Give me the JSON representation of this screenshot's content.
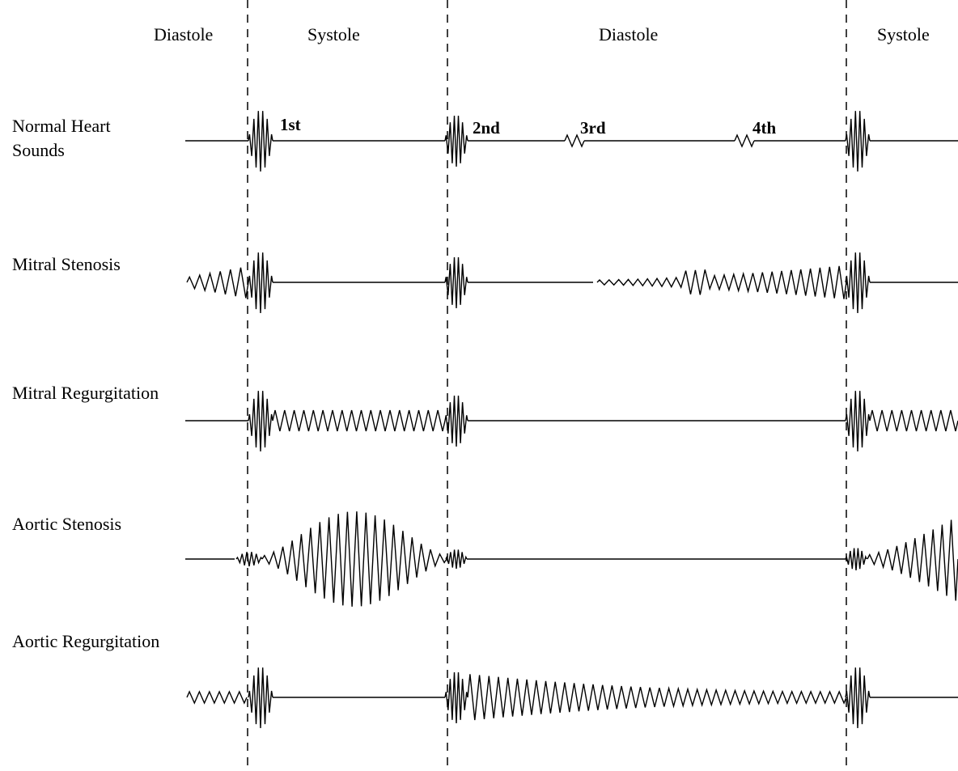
{
  "phases": [
    "Diastole",
    "Systole",
    "Diastole",
    "Systole"
  ],
  "rows": [
    {
      "name": "normal",
      "label_lines": [
        "Normal Heart",
        "Sounds"
      ]
    },
    {
      "name": "mitral-stenosis",
      "label_lines": [
        "Mitral Stenosis"
      ]
    },
    {
      "name": "mitral-regurgitation",
      "label_lines": [
        "Mitral Regurgitation"
      ]
    },
    {
      "name": "aortic-stenosis",
      "label_lines": [
        "Aortic Stenosis"
      ]
    },
    {
      "name": "aortic-regurgitation",
      "label_lines": [
        "Aortic Regurgitation"
      ]
    }
  ],
  "sound_labels": [
    "1st",
    "2nd",
    "3rd",
    "4th"
  ]
}
